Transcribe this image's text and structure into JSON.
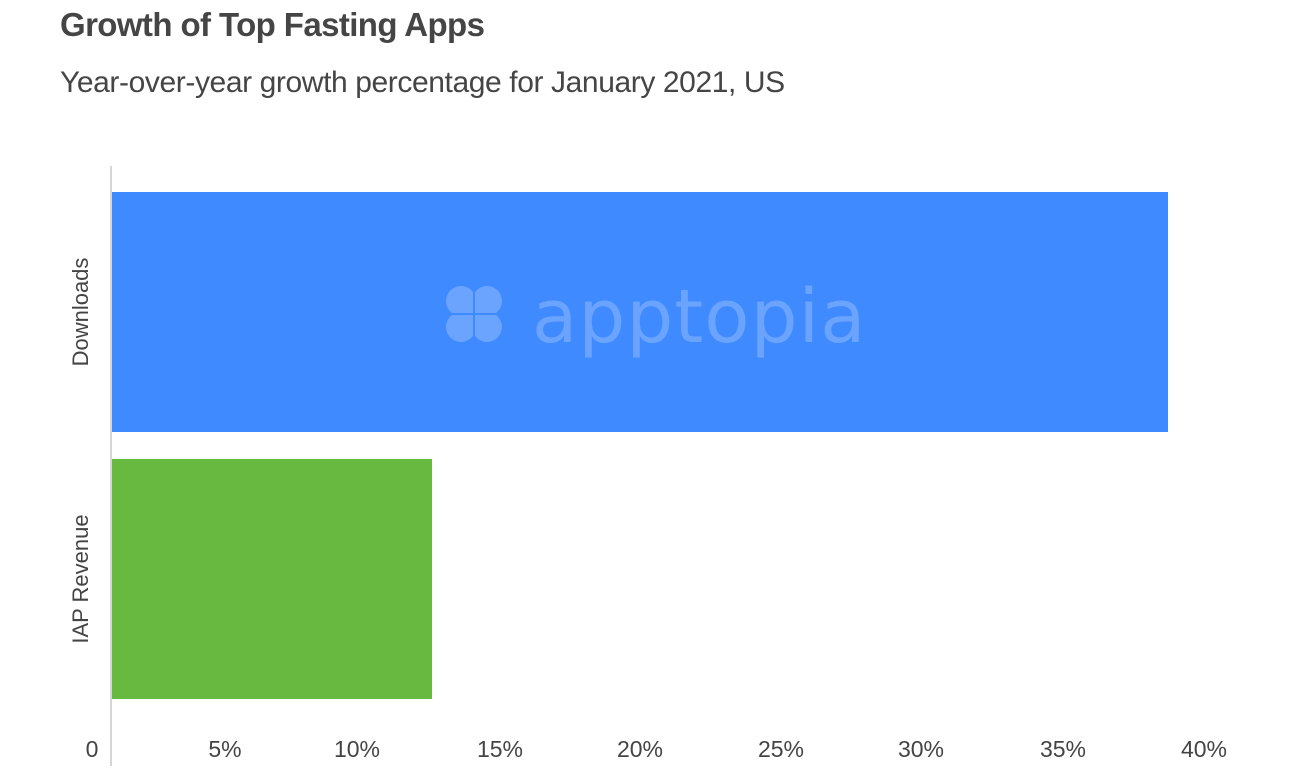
{
  "title": "Growth of Top Fasting Apps",
  "subtitle": "Year-over-year growth percentage for January 2021, US",
  "watermark": {
    "icon": "apptopia-logo-icon",
    "text": "apptopia"
  },
  "colors": {
    "downloads": "#3f8aff",
    "iap_revenue": "#67ba3f",
    "axis": "#d6d6d6",
    "text": "#444444",
    "watermark": "#6aa4ff"
  },
  "chart_data": {
    "type": "bar",
    "orientation": "horizontal",
    "title": "Growth of Top Fasting Apps",
    "subtitle": "Year-over-year growth percentage for January 2021, US",
    "categories": [
      "Downloads",
      "IAP Revenue"
    ],
    "values": [
      38,
      11.5
    ],
    "value_unit": "%",
    "xlabel": "",
    "ylabel": "",
    "xlim": [
      0,
      40
    ],
    "x_ticks": [
      "0",
      "5%",
      "10%",
      "15%",
      "20%",
      "25%",
      "30%",
      "35%",
      "40%"
    ],
    "grid": false,
    "legend": null,
    "bar_colors": [
      "#3f8aff",
      "#67ba3f"
    ]
  }
}
